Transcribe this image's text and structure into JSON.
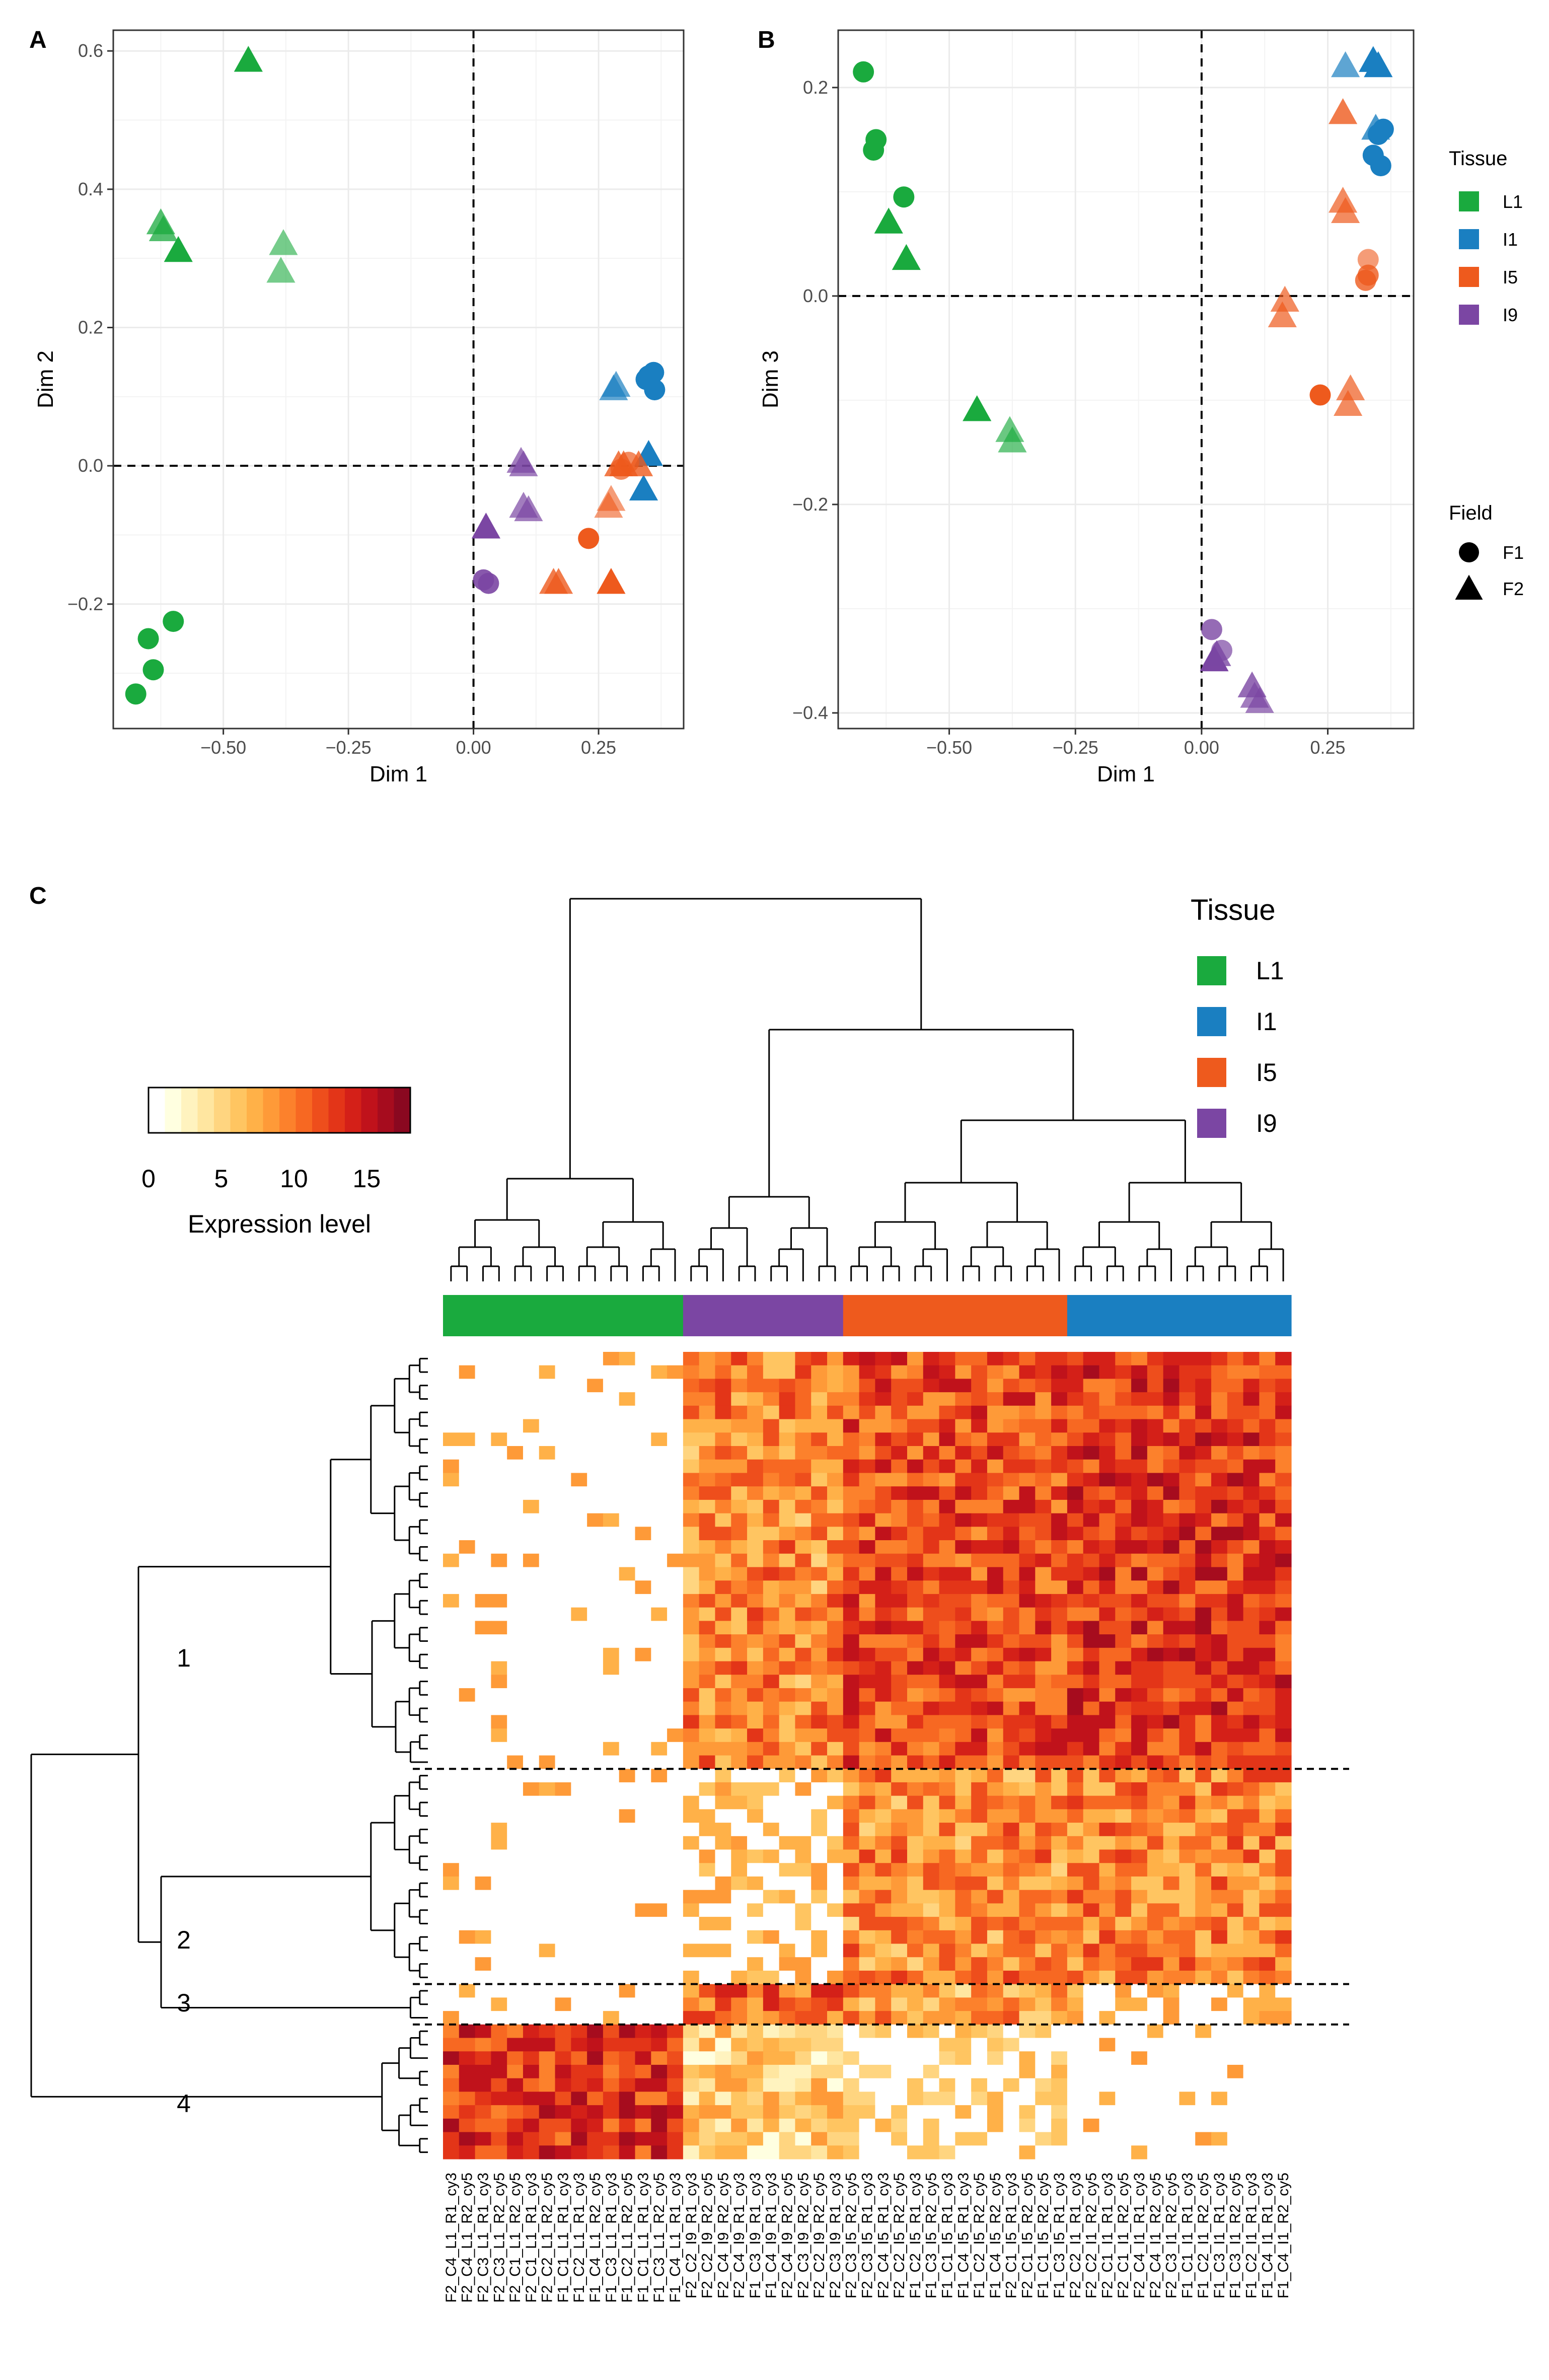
{
  "colors": {
    "L1": "#1aaa3e",
    "I1": "#1a7fc1",
    "I5": "#ee5a1d",
    "I9": "#7b46a3",
    "axis": "#333333",
    "grid": "#ebebeb"
  },
  "panels": {
    "a": "A",
    "b": "B",
    "c": "C"
  },
  "chart_data": [
    {
      "type": "scatter",
      "panel": "A",
      "xlabel": "Dim 1",
      "ylabel": "Dim 2",
      "xlim": [
        -0.72,
        0.42
      ],
      "ylim": [
        -0.38,
        0.63
      ],
      "xticks": [
        -0.5,
        -0.25,
        0.0,
        0.25
      ],
      "xtick_labels": [
        "−0.50",
        "−0.25",
        "0.00",
        "0.25"
      ],
      "yticks": [
        -0.2,
        0.0,
        0.2,
        0.4,
        0.6
      ],
      "ytick_labels": [
        "−0.2",
        "0.0",
        "0.2",
        "0.4",
        "0.6"
      ],
      "reference_lines": {
        "x": 0,
        "y": 0
      },
      "points": [
        {
          "x": -0.45,
          "y": 0.585,
          "tissue": "L1",
          "field": "F2",
          "alpha": 1.0
        },
        {
          "x": -0.625,
          "y": 0.35,
          "tissue": "L1",
          "field": "F2",
          "alpha": 0.75
        },
        {
          "x": -0.62,
          "y": 0.34,
          "tissue": "L1",
          "field": "F2",
          "alpha": 0.75
        },
        {
          "x": -0.59,
          "y": 0.31,
          "tissue": "L1",
          "field": "F2",
          "alpha": 1.0
        },
        {
          "x": -0.38,
          "y": 0.32,
          "tissue": "L1",
          "field": "F2",
          "alpha": 0.6
        },
        {
          "x": -0.385,
          "y": 0.28,
          "tissue": "L1",
          "field": "F2",
          "alpha": 0.6
        },
        {
          "x": -0.6,
          "y": -0.225,
          "tissue": "L1",
          "field": "F1",
          "alpha": 1.0
        },
        {
          "x": -0.65,
          "y": -0.25,
          "tissue": "L1",
          "field": "F1",
          "alpha": 1.0
        },
        {
          "x": -0.64,
          "y": -0.295,
          "tissue": "L1",
          "field": "F1",
          "alpha": 1.0
        },
        {
          "x": -0.675,
          "y": -0.33,
          "tissue": "L1",
          "field": "F1",
          "alpha": 1.0
        },
        {
          "x": 0.285,
          "y": 0.115,
          "tissue": "I1",
          "field": "F2",
          "alpha": 0.7
        },
        {
          "x": 0.28,
          "y": 0.11,
          "tissue": "I1",
          "field": "F2",
          "alpha": 0.7
        },
        {
          "x": 0.345,
          "y": 0.125,
          "tissue": "I1",
          "field": "F1",
          "alpha": 1.0
        },
        {
          "x": 0.36,
          "y": 0.135,
          "tissue": "I1",
          "field": "F1",
          "alpha": 1.0
        },
        {
          "x": 0.35,
          "y": 0.13,
          "tissue": "I1",
          "field": "F1",
          "alpha": 1.0
        },
        {
          "x": 0.362,
          "y": 0.11,
          "tissue": "I1",
          "field": "F1",
          "alpha": 1.0
        },
        {
          "x": 0.35,
          "y": 0.015,
          "tissue": "I1",
          "field": "F2",
          "alpha": 1.0
        },
        {
          "x": 0.34,
          "y": -0.035,
          "tissue": "I1",
          "field": "F2",
          "alpha": 1.0
        },
        {
          "x": 0.29,
          "y": -0.0,
          "tissue": "I5",
          "field": "F2",
          "alpha": 0.8
        },
        {
          "x": 0.3,
          "y": 0.0,
          "tissue": "I5",
          "field": "F2",
          "alpha": 0.8
        },
        {
          "x": 0.31,
          "y": 0.005,
          "tissue": "I5",
          "field": "F1",
          "alpha": 0.7
        },
        {
          "x": 0.295,
          "y": -0.005,
          "tissue": "I5",
          "field": "F1",
          "alpha": 0.7
        },
        {
          "x": 0.33,
          "y": 0.0,
          "tissue": "I5",
          "field": "F2",
          "alpha": 0.8
        },
        {
          "x": 0.275,
          "y": -0.05,
          "tissue": "I5",
          "field": "F2",
          "alpha": 0.6
        },
        {
          "x": 0.27,
          "y": -0.06,
          "tissue": "I5",
          "field": "F2",
          "alpha": 0.6
        },
        {
          "x": 0.23,
          "y": -0.105,
          "tissue": "I5",
          "field": "F1",
          "alpha": 1.0
        },
        {
          "x": 0.16,
          "y": -0.17,
          "tissue": "I5",
          "field": "F2",
          "alpha": 0.8
        },
        {
          "x": 0.17,
          "y": -0.17,
          "tissue": "I5",
          "field": "F2",
          "alpha": 0.8
        },
        {
          "x": 0.275,
          "y": -0.17,
          "tissue": "I5",
          "field": "F2",
          "alpha": 1.0
        },
        {
          "x": 0.095,
          "y": 0.005,
          "tissue": "I9",
          "field": "F2",
          "alpha": 0.7
        },
        {
          "x": 0.1,
          "y": 0.0,
          "tissue": "I9",
          "field": "F2",
          "alpha": 0.7
        },
        {
          "x": 0.1,
          "y": -0.06,
          "tissue": "I9",
          "field": "F2",
          "alpha": 0.7
        },
        {
          "x": 0.11,
          "y": -0.065,
          "tissue": "I9",
          "field": "F2",
          "alpha": 0.7
        },
        {
          "x": 0.025,
          "y": -0.09,
          "tissue": "I9",
          "field": "F2",
          "alpha": 1.0
        },
        {
          "x": 0.02,
          "y": -0.165,
          "tissue": "I9",
          "field": "F1",
          "alpha": 0.9
        },
        {
          "x": 0.03,
          "y": -0.17,
          "tissue": "I9",
          "field": "F1",
          "alpha": 0.9
        }
      ]
    },
    {
      "type": "scatter",
      "panel": "B",
      "xlabel": "Dim 1",
      "ylabel": "Dim 3",
      "xlim": [
        -0.72,
        0.42
      ],
      "ylim": [
        -0.415,
        0.255
      ],
      "xticks": [
        -0.5,
        -0.25,
        0.0,
        0.25
      ],
      "xtick_labels": [
        "−0.50",
        "−0.25",
        "0.00",
        "0.25"
      ],
      "yticks": [
        -0.4,
        -0.2,
        0.0,
        0.2
      ],
      "ytick_labels": [
        "−0.4",
        "−0.2",
        "0.0",
        "0.2"
      ],
      "reference_lines": {
        "x": 0,
        "y": 0
      },
      "points": [
        {
          "x": -0.67,
          "y": 0.215,
          "tissue": "L1",
          "field": "F1",
          "alpha": 1.0
        },
        {
          "x": -0.645,
          "y": 0.15,
          "tissue": "L1",
          "field": "F1",
          "alpha": 1.0
        },
        {
          "x": -0.65,
          "y": 0.14,
          "tissue": "L1",
          "field": "F1",
          "alpha": 1.0
        },
        {
          "x": -0.59,
          "y": 0.095,
          "tissue": "L1",
          "field": "F1",
          "alpha": 1.0
        },
        {
          "x": -0.62,
          "y": 0.07,
          "tissue": "L1",
          "field": "F2",
          "alpha": 1.0
        },
        {
          "x": -0.585,
          "y": 0.035,
          "tissue": "L1",
          "field": "F2",
          "alpha": 1.0
        },
        {
          "x": -0.445,
          "y": -0.11,
          "tissue": "L1",
          "field": "F2",
          "alpha": 1.0
        },
        {
          "x": -0.38,
          "y": -0.13,
          "tissue": "L1",
          "field": "F2",
          "alpha": 0.65
        },
        {
          "x": -0.375,
          "y": -0.14,
          "tissue": "L1",
          "field": "F2",
          "alpha": 0.65
        },
        {
          "x": 0.285,
          "y": 0.22,
          "tissue": "I1",
          "field": "F2",
          "alpha": 0.7
        },
        {
          "x": 0.34,
          "y": 0.225,
          "tissue": "I1",
          "field": "F2",
          "alpha": 1.0
        },
        {
          "x": 0.35,
          "y": 0.22,
          "tissue": "I1",
          "field": "F2",
          "alpha": 1.0
        },
        {
          "x": 0.345,
          "y": 0.16,
          "tissue": "I1",
          "field": "F2",
          "alpha": 0.8
        },
        {
          "x": 0.35,
          "y": 0.155,
          "tissue": "I1",
          "field": "F1",
          "alpha": 1.0
        },
        {
          "x": 0.36,
          "y": 0.16,
          "tissue": "I1",
          "field": "F1",
          "alpha": 1.0
        },
        {
          "x": 0.34,
          "y": 0.135,
          "tissue": "I1",
          "field": "F1",
          "alpha": 1.0
        },
        {
          "x": 0.355,
          "y": 0.125,
          "tissue": "I1",
          "field": "F1",
          "alpha": 1.0
        },
        {
          "x": 0.28,
          "y": 0.175,
          "tissue": "I5",
          "field": "F2",
          "alpha": 0.8
        },
        {
          "x": 0.285,
          "y": 0.08,
          "tissue": "I5",
          "field": "F2",
          "alpha": 0.7
        },
        {
          "x": 0.28,
          "y": 0.09,
          "tissue": "I5",
          "field": "F2",
          "alpha": 0.7
        },
        {
          "x": 0.33,
          "y": 0.035,
          "tissue": "I5",
          "field": "F1",
          "alpha": 0.6
        },
        {
          "x": 0.33,
          "y": 0.02,
          "tissue": "I5",
          "field": "F1",
          "alpha": 0.8
        },
        {
          "x": 0.325,
          "y": 0.015,
          "tissue": "I5",
          "field": "F1",
          "alpha": 0.8
        },
        {
          "x": 0.165,
          "y": -0.005,
          "tissue": "I5",
          "field": "F2",
          "alpha": 0.7
        },
        {
          "x": 0.16,
          "y": -0.02,
          "tissue": "I5",
          "field": "F2",
          "alpha": 0.7
        },
        {
          "x": 0.235,
          "y": -0.095,
          "tissue": "I5",
          "field": "F1",
          "alpha": 1.0
        },
        {
          "x": 0.295,
          "y": -0.09,
          "tissue": "I5",
          "field": "F2",
          "alpha": 0.7
        },
        {
          "x": 0.29,
          "y": -0.105,
          "tissue": "I5",
          "field": "F2",
          "alpha": 0.7
        },
        {
          "x": 0.02,
          "y": -0.32,
          "tissue": "I9",
          "field": "F1",
          "alpha": 0.8
        },
        {
          "x": 0.04,
          "y": -0.34,
          "tissue": "I9",
          "field": "F1",
          "alpha": 0.7
        },
        {
          "x": 0.025,
          "y": -0.35,
          "tissue": "I9",
          "field": "F2",
          "alpha": 1.0
        },
        {
          "x": 0.03,
          "y": -0.345,
          "tissue": "I9",
          "field": "F2",
          "alpha": 0.8
        },
        {
          "x": 0.1,
          "y": -0.375,
          "tissue": "I9",
          "field": "F2",
          "alpha": 0.8
        },
        {
          "x": 0.105,
          "y": -0.385,
          "tissue": "I9",
          "field": "F2",
          "alpha": 0.7
        },
        {
          "x": 0.115,
          "y": -0.39,
          "tissue": "I9",
          "field": "F2",
          "alpha": 0.7
        }
      ]
    },
    {
      "type": "heatmap",
      "panel": "C",
      "tissue_order": [
        "L1",
        "I9",
        "I5",
        "I1"
      ],
      "columns": [
        {
          "label": "F2_C4_L1_R1_cy3",
          "tissue": "L1"
        },
        {
          "label": "F2_C4_L1_R2_cy5",
          "tissue": "L1"
        },
        {
          "label": "F2_C3_L1_R1_cy3",
          "tissue": "L1"
        },
        {
          "label": "F2_C3_L1_R2_cy5",
          "tissue": "L1"
        },
        {
          "label": "F2_C1_L1_R2_cy5",
          "tissue": "L1"
        },
        {
          "label": "F2_C1_L1_R1_cy3",
          "tissue": "L1"
        },
        {
          "label": "F2_C2_L1_R2_cy5",
          "tissue": "L1"
        },
        {
          "label": "F1_C1_L1_R1_cy3",
          "tissue": "L1"
        },
        {
          "label": "F1_C2_L1_R1_cy3",
          "tissue": "L1"
        },
        {
          "label": "F1_C4_L1_R2_cy5",
          "tissue": "L1"
        },
        {
          "label": "F1_C3_L1_R1_cy3",
          "tissue": "L1"
        },
        {
          "label": "F1_C2_L1_R2_cy5",
          "tissue": "L1"
        },
        {
          "label": "F1_C1_L1_R1_cy3",
          "tissue": "L1"
        },
        {
          "label": "F1_C3_L1_R2_cy5",
          "tissue": "L1"
        },
        {
          "label": "F1_C4_L1_R1_cy3",
          "tissue": "L1"
        },
        {
          "label": "F2_C2_I9_R1_cy3",
          "tissue": "I9"
        },
        {
          "label": "F2_C2_I9_R2_cy5",
          "tissue": "I9"
        },
        {
          "label": "F2_C4_I9_R2_cy5",
          "tissue": "I9"
        },
        {
          "label": "F2_C4_I9_R1_cy3",
          "tissue": "I9"
        },
        {
          "label": "F1_C3_I9_R1_cy3",
          "tissue": "I9"
        },
        {
          "label": "F1_C4_I9_R1_cy3",
          "tissue": "I9"
        },
        {
          "label": "F2_C4_I9_R2_cy5",
          "tissue": "I9"
        },
        {
          "label": "F2_C3_I9_R2_cy5",
          "tissue": "I9"
        },
        {
          "label": "F2_C2_I9_R2_cy5",
          "tissue": "I9"
        },
        {
          "label": "F2_C3_I9_R1_cy3",
          "tissue": "I9"
        },
        {
          "label": "F2_C3_I5_R2_cy5",
          "tissue": "I5"
        },
        {
          "label": "F2_C3_I5_R1_cy3",
          "tissue": "I5"
        },
        {
          "label": "F2_C4_I5_R1_cy3",
          "tissue": "I5"
        },
        {
          "label": "F2_C2_I5_R2_cy5",
          "tissue": "I5"
        },
        {
          "label": "F1_C2_I5_R1_cy3",
          "tissue": "I5"
        },
        {
          "label": "F1_C3_I5_R2_cy5",
          "tissue": "I5"
        },
        {
          "label": "F1_C1_I5_R1_cy3",
          "tissue": "I5"
        },
        {
          "label": "F1_C4_I5_R1_cy3",
          "tissue": "I5"
        },
        {
          "label": "F1_C2_I5_R2_cy5",
          "tissue": "I5"
        },
        {
          "label": "F1_C4_I5_R2_cy5",
          "tissue": "I5"
        },
        {
          "label": "F2_C1_I5_R1_cy3",
          "tissue": "I5"
        },
        {
          "label": "F2_C1_I5_R2_cy5",
          "tissue": "I5"
        },
        {
          "label": "F1_C1_I5_R2_cy5",
          "tissue": "I5"
        },
        {
          "label": "F1_C3_I5_R1_cy3",
          "tissue": "I5"
        },
        {
          "label": "F2_C2_I1_R1_cy3",
          "tissue": "I1"
        },
        {
          "label": "F2_C2_I1_R2_cy5",
          "tissue": "I1"
        },
        {
          "label": "F2_C1_I1_R1_cy3",
          "tissue": "I1"
        },
        {
          "label": "F2_C1_I1_R2_cy5",
          "tissue": "I1"
        },
        {
          "label": "F2_C4_I1_R1_cy3",
          "tissue": "I1"
        },
        {
          "label": "F2_C4_I1_R2_cy5",
          "tissue": "I1"
        },
        {
          "label": "F2_C3_I1_R2_cy5",
          "tissue": "I1"
        },
        {
          "label": "F1_C1_I1_R1_cy3",
          "tissue": "I1"
        },
        {
          "label": "F1_C2_I1_R2_cy5",
          "tissue": "I1"
        },
        {
          "label": "F1_C3_I1_R1_cy3",
          "tissue": "I1"
        },
        {
          "label": "F1_C3_I1_R2_cy5",
          "tissue": "I1"
        },
        {
          "label": "F1_C2_I1_R1_cy3",
          "tissue": "I1"
        },
        {
          "label": "F1_C4_I1_R1_cy3",
          "tissue": "I1"
        },
        {
          "label": "F1_C4_I1_R2_cy5",
          "tissue": "I1"
        }
      ],
      "row_clusters": [
        {
          "label": "1",
          "fraction": 0.52
        },
        {
          "label": "2",
          "fraction": 0.265
        },
        {
          "label": "3",
          "fraction": 0.055
        },
        {
          "label": "4",
          "fraction": 0.16
        }
      ],
      "colorbar": {
        "title": "Expression level",
        "ticks": [
          0,
          5,
          10,
          15
        ],
        "range": [
          0,
          18
        ],
        "colors": [
          "#ffffff",
          "#ffffe0",
          "#fff3bf",
          "#ffe6a0",
          "#ffd580",
          "#ffc561",
          "#ffb148",
          "#fe9a38",
          "#fc812c",
          "#f76822",
          "#ee4e1c",
          "#e33518",
          "#d42018",
          "#c0121b",
          "#a60c1e",
          "#8a0820"
        ]
      }
    }
  ],
  "legend_ab": {
    "tissue_title": "Tissue",
    "tissue_items": [
      {
        "label": "L1",
        "color": "#1aaa3e"
      },
      {
        "label": "I1",
        "color": "#1a7fc1"
      },
      {
        "label": "I5",
        "color": "#ee5a1d"
      },
      {
        "label": "I9",
        "color": "#7b46a3"
      }
    ],
    "field_title": "Field",
    "field_items": [
      {
        "label": "F1",
        "shape": "circle"
      },
      {
        "label": "F2",
        "shape": "triangle"
      }
    ]
  },
  "legend_c": {
    "title": "Tissue",
    "items": [
      {
        "label": "L1",
        "color": "#1aaa3e"
      },
      {
        "label": "I1",
        "color": "#1a7fc1"
      },
      {
        "label": "I5",
        "color": "#ee5a1d"
      },
      {
        "label": "I9",
        "color": "#7b46a3"
      }
    ]
  }
}
